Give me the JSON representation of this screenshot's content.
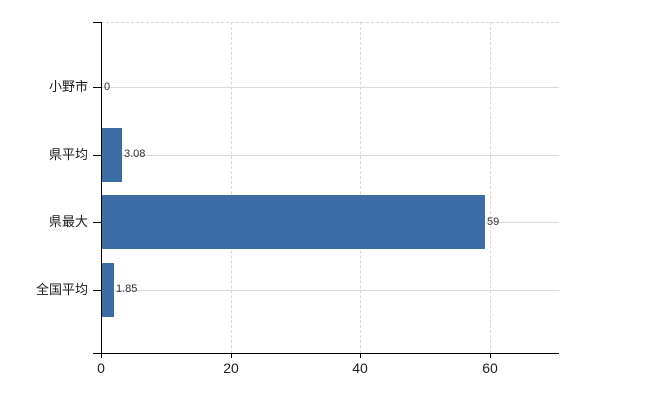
{
  "chart_data": {
    "type": "bar",
    "orientation": "horizontal",
    "categories": [
      "小野市",
      "県平均",
      "県最大",
      "全国平均"
    ],
    "values": [
      0,
      3.08,
      59,
      1.85
    ],
    "value_labels": [
      "0",
      "3.08",
      "59",
      "1.85"
    ],
    "x_ticks": [
      0,
      20,
      40,
      60
    ],
    "x_tick_labels": [
      "0",
      "20",
      "40",
      "60"
    ],
    "xlim": [
      0,
      70.6
    ],
    "ylabel": "",
    "xlabel": "",
    "title": "",
    "legend_position": "none",
    "grid": {
      "horizontal_lines": "solid, one per category",
      "vertical_lines": "dashed at each x tick except 0",
      "top_border": "dashed"
    },
    "colors": {
      "bar": "#3d6da6",
      "grid_solid": "#d9d9d9",
      "grid_dashed": "#d6d6d6",
      "axis": "#000000",
      "category_text": "#1a1a1a",
      "value_text": "#333333",
      "tick_text": "#1f1f1f"
    }
  }
}
